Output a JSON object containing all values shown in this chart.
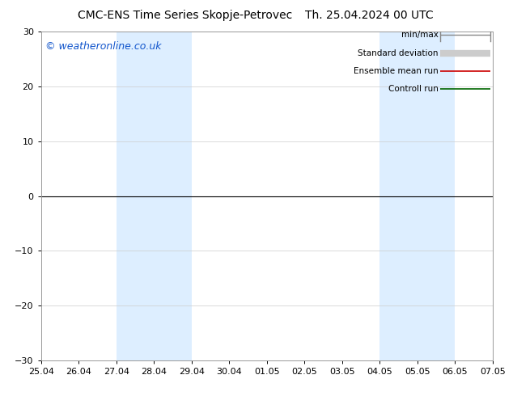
{
  "title": "CMC-ENS Time Series Skopje-Petrovec",
  "title2": "Th. 25.04.2024 00 UTC",
  "watermark": "© weatheronline.co.uk",
  "ylim": [
    -30,
    30
  ],
  "yticks": [
    -30,
    -20,
    -10,
    0,
    10,
    20,
    30
  ],
  "xtick_labels": [
    "25.04",
    "26.04",
    "27.04",
    "28.04",
    "29.04",
    "30.04",
    "01.05",
    "02.05",
    "03.05",
    "04.05",
    "05.05",
    "06.05",
    "07.05"
  ],
  "shaded_bands": [
    {
      "start": 2,
      "end": 4
    },
    {
      "start": 9,
      "end": 11
    }
  ],
  "shaded_color": "#ddeeff",
  "background_color": "#ffffff",
  "legend_items": [
    {
      "label": "min/max",
      "color": "#888888",
      "lw": 1.0,
      "thick": false
    },
    {
      "label": "Standard deviation",
      "color": "#cccccc",
      "lw": 6.0,
      "thick": true
    },
    {
      "label": "Ensemble mean run",
      "color": "#cc0000",
      "lw": 1.2,
      "thick": false
    },
    {
      "label": "Controll run",
      "color": "#006600",
      "lw": 1.2,
      "thick": false
    }
  ],
  "zero_line_color": "#000000",
  "title_fontsize": 10,
  "legend_fontsize": 7.5,
  "tick_fontsize": 8,
  "watermark_color": "#1155cc",
  "watermark_fontsize": 9
}
